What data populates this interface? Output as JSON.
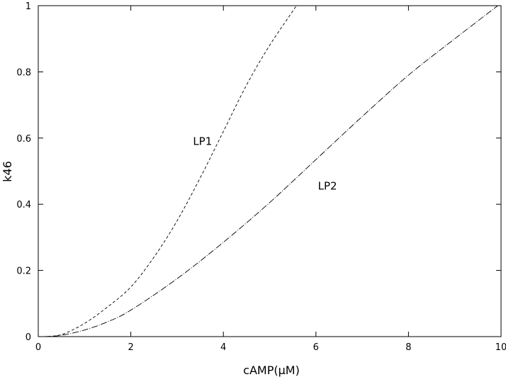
{
  "chart_data": {
    "type": "line",
    "title": "",
    "xlabel": "cAMP(μM)",
    "ylabel": "k46",
    "xlim": [
      0,
      10
    ],
    "ylim": [
      0,
      1
    ],
    "xticks": [
      0,
      2,
      4,
      6,
      8,
      10
    ],
    "yticks": [
      0,
      0.2,
      0.4,
      0.6,
      0.8,
      1
    ],
    "xtick_labels": [
      "0",
      "2",
      "4",
      "6",
      "8",
      "10"
    ],
    "ytick_labels": [
      "0",
      "0.2",
      "0.4",
      "0.6",
      "0.8",
      "1"
    ],
    "grid": false,
    "legend": "none",
    "series": [
      {
        "style": "dashed",
        "color": "#000000",
        "points": [
          [
            0.1,
            0.0
          ],
          [
            0.5,
            0.006
          ],
          [
            1.0,
            0.04
          ],
          [
            1.5,
            0.09
          ],
          [
            2.0,
            0.15
          ],
          [
            2.5,
            0.24
          ],
          [
            3.0,
            0.35
          ],
          [
            3.5,
            0.48
          ],
          [
            4.0,
            0.62
          ],
          [
            4.5,
            0.76
          ],
          [
            5.0,
            0.88
          ],
          [
            5.58,
            1.0
          ]
        ]
      },
      {
        "style": "dash-dot",
        "color": "#000000",
        "points": [
          [
            0.1,
            0.0
          ],
          [
            0.5,
            0.004
          ],
          [
            1.0,
            0.02
          ],
          [
            1.5,
            0.045
          ],
          [
            2.0,
            0.08
          ],
          [
            3.0,
            0.175
          ],
          [
            4.0,
            0.285
          ],
          [
            5.0,
            0.405
          ],
          [
            6.0,
            0.535
          ],
          [
            7.0,
            0.665
          ],
          [
            8.0,
            0.79
          ],
          [
            9.0,
            0.9
          ],
          [
            9.93,
            1.0
          ]
        ]
      }
    ],
    "annotations": [
      {
        "text": "LP1",
        "x": 3.55,
        "y": 0.59
      },
      {
        "text": "LP2",
        "x": 6.25,
        "y": 0.455
      }
    ]
  }
}
